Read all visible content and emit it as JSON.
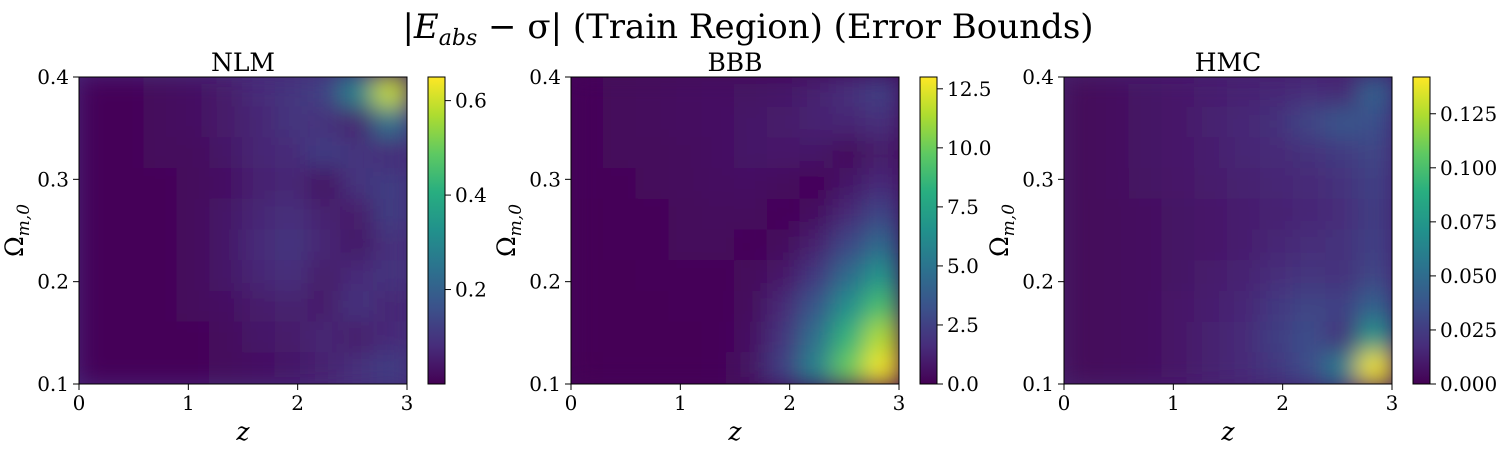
{
  "figure": {
    "title": "|Eabs − σ| (Train Region) (Error Bounds)",
    "title_parts": {
      "bar_left": "|",
      "E": "E",
      "sub": "abs",
      "op": " − σ",
      "bar_right": "|",
      "rest": " (Train Region) (Error Bounds)"
    }
  },
  "chart_data": [
    {
      "type": "heatmap",
      "title": "NLM",
      "xlabel": "z",
      "ylabel": "Ωm,0",
      "xlim": [
        0,
        3
      ],
      "ylim": [
        0.1,
        0.4
      ],
      "xticks": [
        "0",
        "1",
        "2",
        "3"
      ],
      "yticks": [
        "0.1",
        "0.2",
        "0.3",
        "0.4"
      ],
      "colormap": "viridis",
      "clim": [
        0.0,
        0.65
      ],
      "colorbar_ticks": [
        0.2,
        0.4,
        0.6
      ],
      "colorbar_labels": [
        "0.2",
        "0.4",
        "0.6"
      ],
      "z_grid": [
        [
          0.01,
          0.01,
          0.02,
          0.03,
          0.05,
          0.08,
          0.1,
          0.13,
          0.3,
          0.6
        ],
        [
          0.01,
          0.01,
          0.02,
          0.03,
          0.05,
          0.07,
          0.1,
          0.09,
          0.06,
          0.25
        ],
        [
          0.01,
          0.01,
          0.02,
          0.02,
          0.04,
          0.07,
          0.08,
          0.12,
          0.1,
          0.08
        ],
        [
          0.01,
          0.01,
          0.01,
          0.02,
          0.03,
          0.06,
          0.07,
          0.03,
          0.1,
          0.12
        ],
        [
          0.01,
          0.01,
          0.01,
          0.02,
          0.04,
          0.07,
          0.09,
          0.06,
          0.05,
          0.12
        ],
        [
          0.01,
          0.01,
          0.01,
          0.02,
          0.04,
          0.08,
          0.1,
          0.07,
          0.04,
          0.09
        ],
        [
          0.01,
          0.01,
          0.01,
          0.02,
          0.04,
          0.07,
          0.09,
          0.05,
          0.08,
          0.1
        ],
        [
          0.01,
          0.01,
          0.01,
          0.02,
          0.03,
          0.05,
          0.06,
          0.05,
          0.1,
          0.07
        ],
        [
          0.01,
          0.01,
          0.01,
          0.01,
          0.02,
          0.04,
          0.05,
          0.07,
          0.05,
          0.08
        ],
        [
          0.01,
          0.01,
          0.01,
          0.01,
          0.02,
          0.03,
          0.04,
          0.06,
          0.09,
          0.12
        ]
      ]
    },
    {
      "type": "heatmap",
      "title": "BBB",
      "xlabel": "z",
      "ylabel": "Ωm,0",
      "xlim": [
        0,
        3
      ],
      "ylim": [
        0.1,
        0.4
      ],
      "xticks": [
        "0",
        "1",
        "2",
        "3"
      ],
      "yticks": [
        "0.1",
        "0.2",
        "0.3",
        "0.4"
      ],
      "colormap": "viridis",
      "clim": [
        0.0,
        13.0
      ],
      "colorbar_ticks": [
        0.0,
        2.5,
        5.0,
        7.5,
        10.0,
        12.5
      ],
      "colorbar_labels": [
        "0.0",
        "2.5",
        "5.0",
        "7.5",
        "10.0",
        "12.5"
      ],
      "z_grid": [
        [
          0.2,
          0.3,
          0.4,
          0.5,
          0.6,
          0.7,
          0.8,
          1.2,
          1.8,
          2.5
        ],
        [
          0.2,
          0.3,
          0.4,
          0.5,
          0.6,
          0.8,
          1.0,
          1.3,
          1.4,
          1.8
        ],
        [
          0.2,
          0.3,
          0.3,
          0.4,
          0.6,
          0.8,
          0.9,
          0.8,
          0.3,
          1.0
        ],
        [
          0.2,
          0.2,
          0.3,
          0.4,
          0.5,
          0.6,
          0.4,
          0.2,
          0.8,
          1.6
        ],
        [
          0.1,
          0.2,
          0.2,
          0.3,
          0.4,
          0.4,
          0.2,
          0.5,
          1.5,
          2.8
        ],
        [
          0.1,
          0.2,
          0.2,
          0.3,
          0.3,
          0.2,
          0.4,
          1.2,
          2.8,
          4.5
        ],
        [
          0.1,
          0.1,
          0.2,
          0.2,
          0.2,
          0.3,
          0.9,
          2.2,
          4.5,
          6.8
        ],
        [
          0.1,
          0.1,
          0.1,
          0.2,
          0.2,
          0.4,
          1.5,
          3.5,
          6.5,
          9.2
        ],
        [
          0.1,
          0.1,
          0.1,
          0.1,
          0.2,
          0.6,
          2.0,
          4.8,
          8.5,
          11.5
        ],
        [
          0.0,
          0.1,
          0.1,
          0.1,
          0.2,
          0.7,
          2.5,
          5.8,
          10.0,
          12.8
        ]
      ]
    },
    {
      "type": "heatmap",
      "title": "HMC",
      "xlabel": "z",
      "ylabel": "Ωm,0",
      "xlim": [
        0,
        3
      ],
      "ylim": [
        0.1,
        0.4
      ],
      "xticks": [
        "0",
        "1",
        "2",
        "3"
      ],
      "yticks": [
        "0.1",
        "0.2",
        "0.3",
        "0.4"
      ],
      "colormap": "viridis",
      "clim": [
        0.0,
        0.142
      ],
      "colorbar_ticks": [
        0.0,
        0.025,
        0.05,
        0.075,
        0.1,
        0.125
      ],
      "colorbar_labels": [
        "0.000",
        "0.025",
        "0.050",
        "0.075",
        "0.100",
        "0.125"
      ],
      "z_grid": [
        [
          0.003,
          0.005,
          0.008,
          0.01,
          0.012,
          0.014,
          0.016,
          0.018,
          0.015,
          0.045
        ],
        [
          0.003,
          0.005,
          0.008,
          0.01,
          0.013,
          0.016,
          0.02,
          0.03,
          0.038,
          0.035
        ],
        [
          0.003,
          0.005,
          0.008,
          0.01,
          0.012,
          0.015,
          0.017,
          0.02,
          0.025,
          0.03
        ],
        [
          0.003,
          0.005,
          0.007,
          0.009,
          0.011,
          0.013,
          0.015,
          0.017,
          0.02,
          0.028
        ],
        [
          0.003,
          0.004,
          0.006,
          0.008,
          0.01,
          0.012,
          0.014,
          0.016,
          0.018,
          0.026
        ],
        [
          0.003,
          0.004,
          0.006,
          0.008,
          0.01,
          0.012,
          0.015,
          0.018,
          0.02,
          0.028
        ],
        [
          0.003,
          0.004,
          0.006,
          0.008,
          0.011,
          0.014,
          0.018,
          0.022,
          0.02,
          0.03
        ],
        [
          0.003,
          0.004,
          0.006,
          0.009,
          0.012,
          0.016,
          0.024,
          0.03,
          0.028,
          0.045
        ],
        [
          0.003,
          0.004,
          0.006,
          0.009,
          0.013,
          0.017,
          0.026,
          0.034,
          0.02,
          0.075
        ],
        [
          0.003,
          0.004,
          0.006,
          0.009,
          0.013,
          0.017,
          0.024,
          0.034,
          0.06,
          0.14
        ]
      ]
    }
  ]
}
